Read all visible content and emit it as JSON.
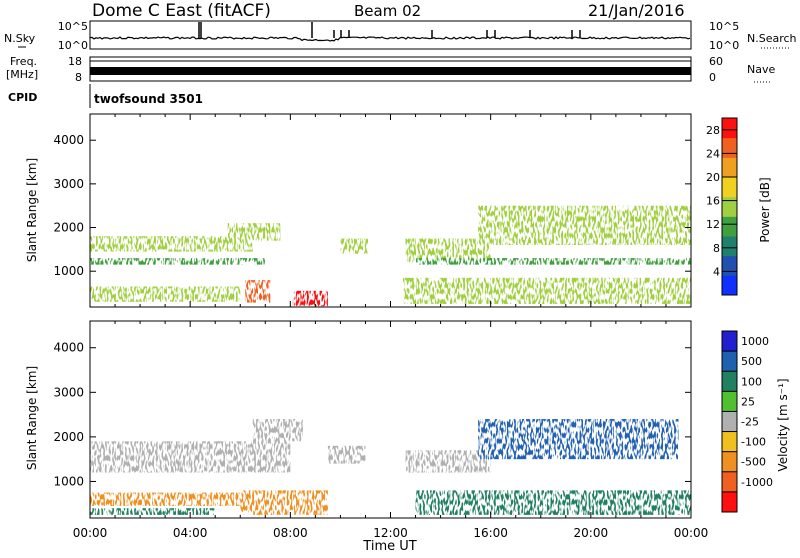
{
  "header": {
    "station": "Dome C East (fitACF)",
    "beam": "Beam 02",
    "date": "21/Jan/2016"
  },
  "top_panels": {
    "nsky_label": "N.Sky",
    "nsky_top_tick": "10^5",
    "nsky_bottom_tick": "10^0",
    "nsearch_label": "N.Search",
    "nsearch_top_tick": "10^5",
    "nsearch_bottom_tick": "10^0",
    "freq_label_line1": "Freq.",
    "freq_label_line2": "[MHz]",
    "freq_top_tick": "18",
    "freq_bottom_tick": "8",
    "nave_label": "Nave",
    "nave_top_tick": "60",
    "nave_bottom_tick": "0",
    "cpid_label": "CPID",
    "cpid_value": "twofsound 3501"
  },
  "colors": {
    "power_scale": [
      "#1030ff",
      "#2050b0",
      "#208070",
      "#40a040",
      "#a0d040",
      "#f0d020",
      "#f0a020",
      "#f06020",
      "#ff1010"
    ],
    "velocity_scale": [
      "#2020d0",
      "#2060b0",
      "#208060",
      "#50c030",
      "#b0b0b0",
      "#f0c020",
      "#f09020",
      "#f06020",
      "#ff1010"
    ]
  },
  "chart_data": [
    {
      "type": "heatmap",
      "name": "power",
      "ylabel": "Slant Range [km]",
      "x_tick_labels": [
        "00:00",
        "04:00",
        "08:00",
        "12:00",
        "16:00",
        "20:00",
        "00:00"
      ],
      "y_tick_values": [
        1000,
        2000,
        3000,
        4000
      ],
      "ylim": [
        180,
        4600
      ],
      "colorbar": {
        "label": "Power [dB]",
        "ticks": [
          4,
          8,
          12,
          16,
          20,
          24,
          28
        ],
        "range": [
          0,
          30
        ]
      },
      "regions": [
        {
          "t": [
            0.0,
            6.5
          ],
          "r": [
            1450,
            1800
          ],
          "value": 14
        },
        {
          "t": [
            5.5,
            7.6
          ],
          "r": [
            1700,
            2100
          ],
          "value": 16
        },
        {
          "t": [
            0.0,
            7.0
          ],
          "r": [
            1150,
            1300
          ],
          "value": 10
        },
        {
          "t": [
            0.0,
            6.0
          ],
          "r": [
            300,
            650
          ],
          "value": 14
        },
        {
          "t": [
            6.2,
            7.2
          ],
          "r": [
            280,
            800
          ],
          "value": 26
        },
        {
          "t": [
            8.1,
            9.5
          ],
          "r": [
            200,
            550
          ],
          "value": 29
        },
        {
          "t": [
            10.0,
            11.1
          ],
          "r": [
            1400,
            1750
          ],
          "value": 14
        },
        {
          "t": [
            12.6,
            16.0
          ],
          "r": [
            1200,
            1750
          ],
          "value": 14
        },
        {
          "t": [
            15.5,
            24.0
          ],
          "r": [
            1600,
            2500
          ],
          "value": 16
        },
        {
          "t": [
            13.0,
            24.0
          ],
          "r": [
            1150,
            1300
          ],
          "value": 10
        },
        {
          "t": [
            12.5,
            24.0
          ],
          "r": [
            250,
            850
          ],
          "value": 14
        }
      ]
    },
    {
      "type": "heatmap",
      "name": "velocity",
      "ylabel": "Slant Range [km]",
      "xlabel": "Time UT",
      "x_tick_labels": [
        "00:00",
        "04:00",
        "08:00",
        "12:00",
        "16:00",
        "20:00",
        "00:00"
      ],
      "y_tick_values": [
        1000,
        2000,
        3000,
        4000
      ],
      "ylim": [
        180,
        4600
      ],
      "colorbar": {
        "label": "Velocity [m s⁻¹]",
        "ticks": [
          "1000",
          "500",
          "100",
          "25",
          "-25",
          "-100",
          "-500",
          "-1000"
        ]
      },
      "regions": [
        {
          "t": [
            0.0,
            8.0
          ],
          "r": [
            1200,
            1900
          ],
          "value": 0
        },
        {
          "t": [
            6.5,
            8.5
          ],
          "r": [
            1900,
            2400
          ],
          "value": 0
        },
        {
          "t": [
            0.0,
            6.0
          ],
          "r": [
            450,
            750
          ],
          "value": -150
        },
        {
          "t": [
            6.0,
            9.5
          ],
          "r": [
            250,
            800
          ],
          "value": -300
        },
        {
          "t": [
            0.0,
            5.0
          ],
          "r": [
            250,
            400
          ],
          "value": 100
        },
        {
          "t": [
            9.5,
            11.0
          ],
          "r": [
            1400,
            1800
          ],
          "value": 0
        },
        {
          "t": [
            12.6,
            16.0
          ],
          "r": [
            1200,
            1700
          ],
          "value": 0
        },
        {
          "t": [
            15.5,
            23.5
          ],
          "r": [
            1500,
            2400
          ],
          "value": 500
        },
        {
          "t": [
            13.0,
            24.0
          ],
          "r": [
            250,
            800
          ],
          "value": 100
        }
      ]
    }
  ]
}
